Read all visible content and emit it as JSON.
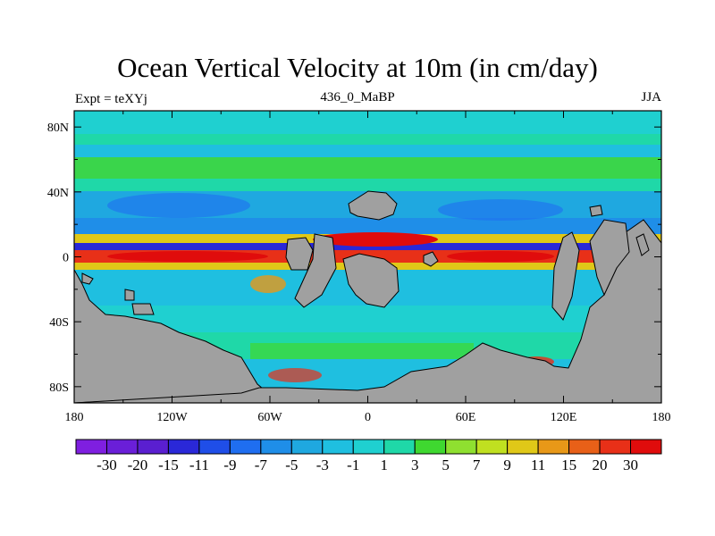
{
  "title": "Ocean Vertical Velocity at 10m (in cm/day)",
  "left_string": "Expt = teXYj",
  "center_string": "436_0_MaBP",
  "right_string": "JJA",
  "map": {
    "lat_ticks": [
      "80N",
      "40N",
      "0",
      "40S",
      "80S"
    ],
    "lon_ticks": [
      "180",
      "120W",
      "60W",
      "0",
      "60E",
      "120E",
      "180"
    ],
    "lat_values": [
      80,
      40,
      0,
      -40,
      -80
    ],
    "lon_values": [
      -180,
      -120,
      -60,
      0,
      60,
      120,
      180
    ],
    "lat_range": [
      -90,
      90
    ],
    "lon_range": [
      -180,
      180
    ],
    "land_color": "#a0a0a0"
  },
  "colorbar": {
    "labels": [
      "-30",
      "-20",
      "-15",
      "-11",
      "-9",
      "-7",
      "-5",
      "-3",
      "-1",
      "1",
      "3",
      "5",
      "7",
      "9",
      "11",
      "15",
      "20",
      "30"
    ],
    "colors": [
      "#7f1fe0",
      "#6a1fd8",
      "#5a1fd0",
      "#2a28d8",
      "#1f4ee8",
      "#1f6ef0",
      "#1f8ee8",
      "#1fa8e0",
      "#1fbfe0",
      "#1fd0d0",
      "#1fd8a8",
      "#3fd830",
      "#8fe030",
      "#c0e020",
      "#e0c818",
      "#e89818",
      "#e86018",
      "#e83018",
      "#e00c0c"
    ]
  }
}
